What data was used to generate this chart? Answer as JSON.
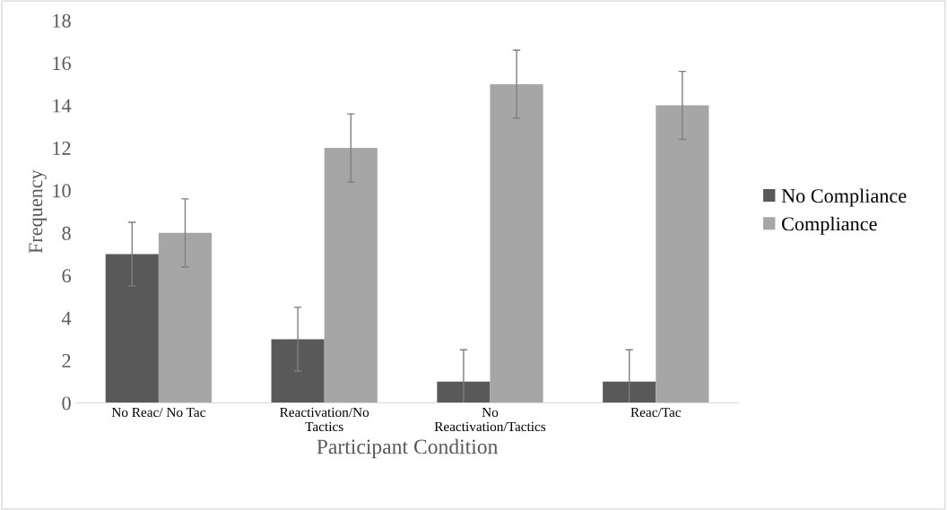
{
  "chart_data": {
    "type": "bar",
    "xlabel": "Participant Condition",
    "ylabel": "Frequency",
    "categories": [
      "No Reac/ No Tac",
      "Reactivation/No\nTactics",
      "No\nReactivation/Tactics",
      "Reac/Tac"
    ],
    "series": [
      {
        "name": "No Compliance",
        "color": "#595959",
        "values": [
          7,
          3,
          1,
          1
        ],
        "errors": [
          1.5,
          1.5,
          1.5,
          1.5
        ]
      },
      {
        "name": "Compliance",
        "color": "#a6a6a6",
        "values": [
          8,
          12,
          15,
          14
        ],
        "errors": [
          1.6,
          1.6,
          1.6,
          1.6
        ]
      }
    ],
    "ylim": [
      0,
      18
    ],
    "yticks": [
      0,
      2,
      4,
      6,
      8,
      10,
      12,
      14,
      16,
      18
    ],
    "grid": false,
    "legend": "right"
  }
}
